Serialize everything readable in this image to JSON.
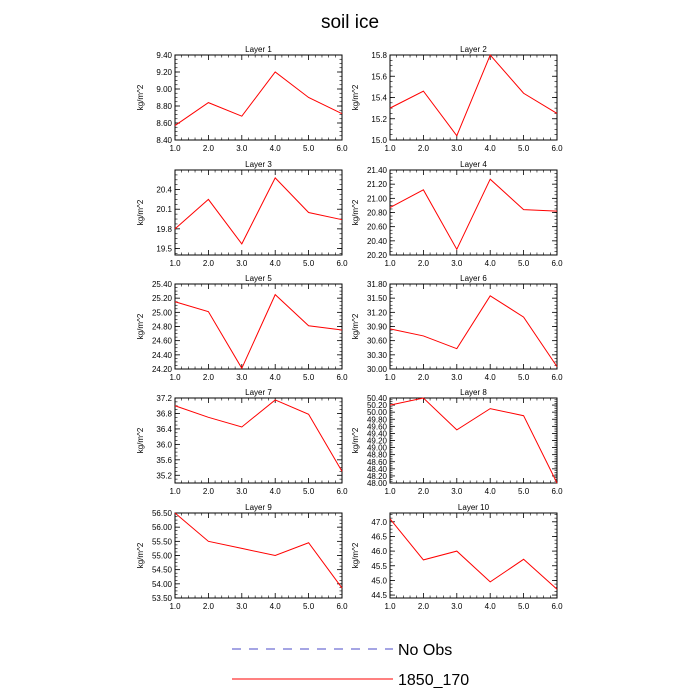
{
  "title": "soil ice",
  "chart_data": [
    {
      "type": "line",
      "title": "Layer 1",
      "ylabel": "kg/m^2",
      "x": [
        1,
        2,
        3,
        4,
        5,
        6
      ],
      "xticks": [
        "1.0",
        "2.0",
        "3.0",
        "4.0",
        "5.0",
        "6.0"
      ],
      "ylim": [
        8.4,
        9.4
      ],
      "yticks": [
        "8.40",
        "8.60",
        "8.80",
        "9.00",
        "9.20",
        "9.40"
      ],
      "series": [
        {
          "values": [
            8.57,
            8.84,
            8.68,
            9.2,
            8.9,
            8.71
          ],
          "color": "#ff0000"
        }
      ]
    },
    {
      "type": "line",
      "title": "Layer 2",
      "ylabel": "kg/m^2",
      "x": [
        1,
        2,
        3,
        4,
        5,
        6
      ],
      "xticks": [
        "1.0",
        "2.0",
        "3.0",
        "4.0",
        "5.0",
        "6.0"
      ],
      "ylim": [
        15.0,
        15.8
      ],
      "yticks": [
        "15.0",
        "15.2",
        "15.4",
        "15.6",
        "15.8"
      ],
      "series": [
        {
          "values": [
            15.3,
            15.46,
            15.04,
            15.8,
            15.44,
            15.25
          ],
          "color": "#ff0000"
        }
      ]
    },
    {
      "type": "line",
      "title": "Layer 3",
      "ylabel": "kg/m^2",
      "x": [
        1,
        2,
        3,
        4,
        5,
        6
      ],
      "xticks": [
        "1.0",
        "2.0",
        "3.0",
        "4.0",
        "5.0",
        "6.0"
      ],
      "ylim": [
        19.4,
        20.7
      ],
      "yticks": [
        "19.5",
        "19.8",
        "20.1",
        "20.4"
      ],
      "series": [
        {
          "values": [
            19.8,
            20.25,
            19.57,
            20.58,
            20.05,
            19.94
          ],
          "color": "#ff0000"
        }
      ]
    },
    {
      "type": "line",
      "title": "Layer 4",
      "ylabel": "kg/m^2",
      "x": [
        1,
        2,
        3,
        4,
        5,
        6
      ],
      "xticks": [
        "1.0",
        "2.0",
        "3.0",
        "4.0",
        "5.0",
        "6.0"
      ],
      "ylim": [
        20.2,
        21.4
      ],
      "yticks": [
        "20.20",
        "20.40",
        "20.60",
        "20.80",
        "21.00",
        "21.20",
        "21.40"
      ],
      "series": [
        {
          "values": [
            20.87,
            21.12,
            20.28,
            21.27,
            20.84,
            20.82
          ],
          "color": "#ff0000"
        }
      ]
    },
    {
      "type": "line",
      "title": "Layer 5",
      "ylabel": "kg/m^2",
      "x": [
        1,
        2,
        3,
        4,
        5,
        6
      ],
      "xticks": [
        "1.0",
        "2.0",
        "3.0",
        "4.0",
        "5.0",
        "6.0"
      ],
      "ylim": [
        24.2,
        25.4
      ],
      "yticks": [
        "24.20",
        "24.40",
        "24.60",
        "24.80",
        "25.00",
        "25.20",
        "25.40"
      ],
      "series": [
        {
          "values": [
            25.15,
            25.01,
            24.21,
            25.25,
            24.81,
            24.75
          ],
          "color": "#ff0000"
        }
      ]
    },
    {
      "type": "line",
      "title": "Layer 6",
      "ylabel": "kg/m^2",
      "x": [
        1,
        2,
        3,
        4,
        5,
        6
      ],
      "xticks": [
        "1.0",
        "2.0",
        "3.0",
        "4.0",
        "5.0",
        "6.0"
      ],
      "ylim": [
        30.0,
        31.8
      ],
      "yticks": [
        "30.00",
        "30.30",
        "30.60",
        "30.90",
        "31.20",
        "31.50",
        "31.80"
      ],
      "series": [
        {
          "values": [
            30.85,
            30.7,
            30.43,
            31.55,
            31.1,
            30.05
          ],
          "color": "#ff0000"
        }
      ]
    },
    {
      "type": "line",
      "title": "Layer 7",
      "ylabel": "kg/m^2",
      "x": [
        1,
        2,
        3,
        4,
        5,
        6
      ],
      "xticks": [
        "1.0",
        "2.0",
        "3.0",
        "4.0",
        "5.0",
        "6.0"
      ],
      "ylim": [
        35.0,
        37.2
      ],
      "yticks": [
        "35.2",
        "35.6",
        "36.0",
        "36.4",
        "36.8",
        "37.2"
      ],
      "series": [
        {
          "values": [
            37.0,
            36.7,
            36.45,
            37.15,
            36.78,
            35.3
          ],
          "color": "#ff0000"
        }
      ]
    },
    {
      "type": "line",
      "title": "Layer 8",
      "ylabel": "kg/m^2",
      "x": [
        1,
        2,
        3,
        4,
        5,
        6
      ],
      "xticks": [
        "1.0",
        "2.0",
        "3.0",
        "4.0",
        "5.0",
        "6.0"
      ],
      "ylim": [
        48.0,
        50.4
      ],
      "yticks": [
        "48.00",
        "48.20",
        "48.40",
        "48.60",
        "48.80",
        "49.00",
        "49.20",
        "49.40",
        "49.60",
        "49.80",
        "50.00",
        "50.20",
        "50.40"
      ],
      "series": [
        {
          "values": [
            50.2,
            50.4,
            49.5,
            50.1,
            49.9,
            48.0
          ],
          "color": "#ff0000"
        }
      ]
    },
    {
      "type": "line",
      "title": "Layer 9",
      "ylabel": "kg/m^2",
      "x": [
        1,
        2,
        3,
        4,
        5,
        6
      ],
      "xticks": [
        "1.0",
        "2.0",
        "3.0",
        "4.0",
        "5.0",
        "6.0"
      ],
      "ylim": [
        53.5,
        56.5
      ],
      "yticks": [
        "53.50",
        "54.00",
        "54.50",
        "55.00",
        "55.50",
        "56.00",
        "56.50"
      ],
      "series": [
        {
          "values": [
            56.5,
            55.5,
            55.25,
            55.0,
            55.45,
            53.85
          ],
          "color": "#ff0000"
        }
      ]
    },
    {
      "type": "line",
      "title": "Layer 10",
      "ylabel": "kg/m^2",
      "x": [
        1,
        2,
        3,
        4,
        5,
        6
      ],
      "xticks": [
        "1.0",
        "2.0",
        "3.0",
        "4.0",
        "5.0",
        "6.0"
      ],
      "ylim": [
        44.4,
        47.3
      ],
      "yticks": [
        "44.5",
        "45.0",
        "45.5",
        "46.0",
        "46.5",
        "47.0"
      ],
      "series": [
        {
          "values": [
            47.1,
            45.7,
            46.0,
            44.95,
            45.72,
            44.7
          ],
          "color": "#ff0000"
        }
      ]
    }
  ],
  "legend": [
    {
      "label": "No Obs",
      "color": "#4b4bc8",
      "dash": true
    },
    {
      "label": "1850_170",
      "color": "#ff0000",
      "dash": false
    }
  ]
}
